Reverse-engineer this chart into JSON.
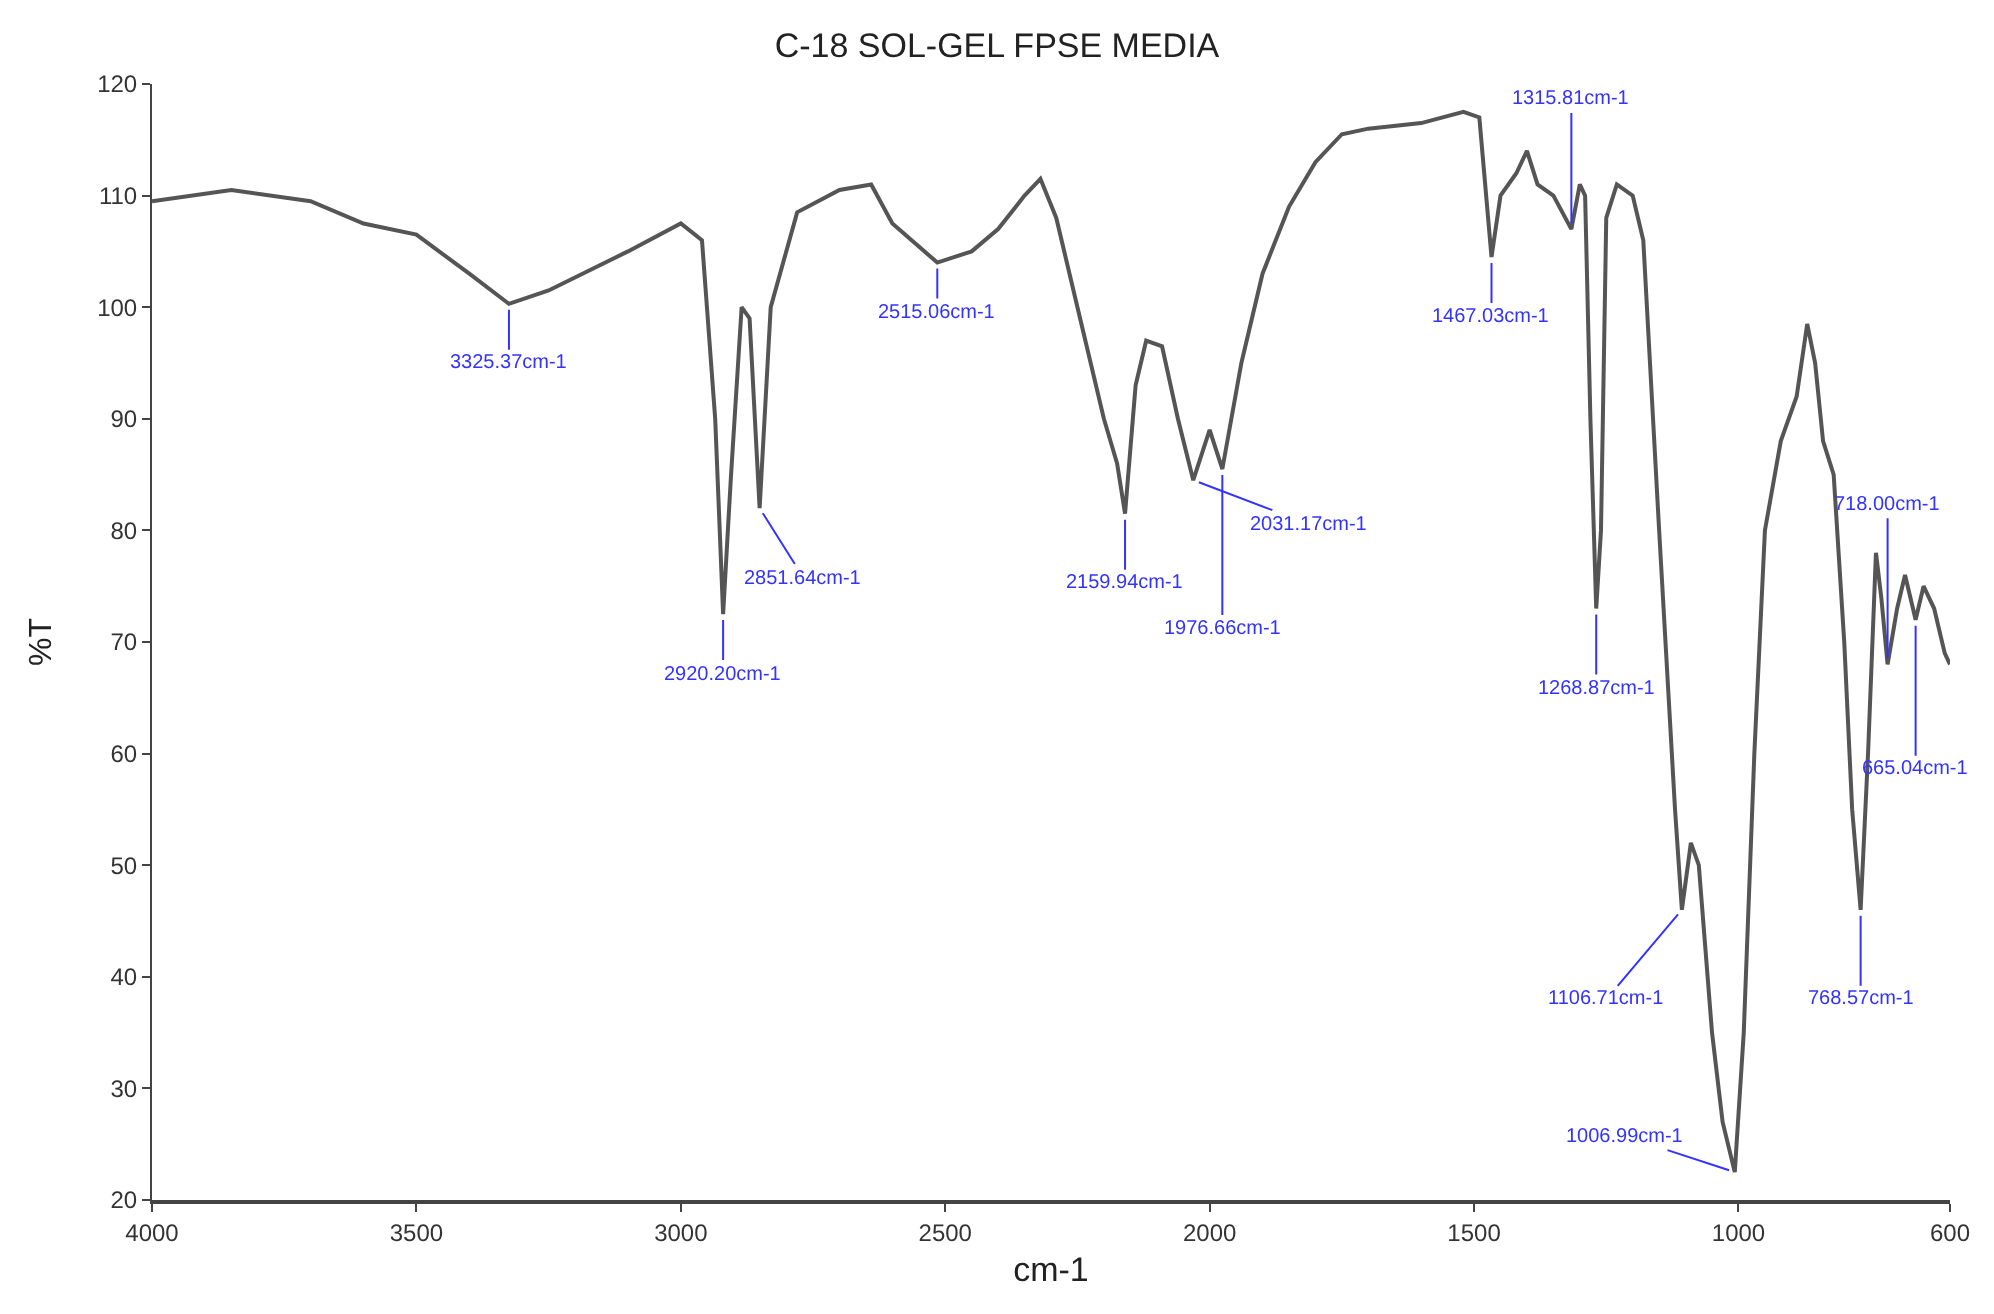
{
  "chart_data": {
    "type": "line",
    "title": "C-18 SOL-GEL FPSE MEDIA",
    "xlabel": "cm-1",
    "ylabel": "%T",
    "marker": "none",
    "line_style": "solid",
    "xlim": [
      4000,
      600
    ],
    "xticks": [
      4000,
      3500,
      3000,
      2500,
      2000,
      1500,
      1000,
      600
    ],
    "ylim": [
      20,
      120
    ],
    "yticks": [
      20,
      30,
      40,
      50,
      60,
      70,
      80,
      90,
      100,
      110,
      120
    ],
    "x": [
      4000,
      3850,
      3700,
      3600,
      3500,
      3400,
      3325,
      3250,
      3100,
      3000,
      2960,
      2935,
      2920,
      2905,
      2885,
      2870,
      2851,
      2830,
      2780,
      2700,
      2640,
      2600,
      2515,
      2450,
      2400,
      2350,
      2320,
      2290,
      2250,
      2200,
      2175,
      2160,
      2140,
      2120,
      2090,
      2060,
      2031,
      2000,
      1976,
      1940,
      1900,
      1850,
      1800,
      1750,
      1700,
      1600,
      1520,
      1490,
      1467,
      1450,
      1420,
      1400,
      1380,
      1350,
      1316,
      1300,
      1290,
      1280,
      1269,
      1260,
      1250,
      1230,
      1200,
      1180,
      1150,
      1120,
      1107,
      1090,
      1075,
      1050,
      1030,
      1007,
      990,
      970,
      950,
      920,
      890,
      870,
      855,
      840,
      820,
      800,
      785,
      769,
      755,
      740,
      730,
      718,
      700,
      685,
      665,
      650,
      630,
      610,
      600
    ],
    "series": [
      {
        "color": "#555555",
        "values": [
          109.5,
          110.5,
          109.5,
          107.5,
          106.5,
          103,
          100.3,
          101.5,
          105,
          107.5,
          106,
          90,
          72.5,
          85,
          100,
          99,
          82,
          100,
          108.5,
          110.5,
          111,
          107.5,
          104,
          105,
          107,
          110,
          111.5,
          108,
          100,
          90,
          86,
          81.5,
          93,
          97,
          96.5,
          90,
          84.5,
          89,
          85.5,
          95,
          103,
          109,
          113,
          115.5,
          116,
          116.5,
          117.5,
          117,
          104.5,
          110,
          112,
          114,
          111,
          110,
          107,
          111,
          110,
          90,
          73,
          80,
          108,
          111,
          110,
          106,
          80,
          55,
          46,
          52,
          50,
          35,
          27,
          22.5,
          35,
          60,
          80,
          88,
          92,
          98.5,
          95,
          88,
          85,
          70,
          55,
          46,
          60,
          78,
          74,
          68,
          73,
          76,
          72,
          75,
          73,
          69,
          68
        ]
      }
    ],
    "annotations": [
      {
        "text": "3325.37cm-1",
        "x": 3325,
        "y": 100.3
      },
      {
        "text": "2920.20cm-1",
        "x": 2920,
        "y": 72.5
      },
      {
        "text": "2851.64cm-1",
        "x": 2851,
        "y": 82
      },
      {
        "text": "2515.06cm-1",
        "x": 2515,
        "y": 104
      },
      {
        "text": "2159.94cm-1",
        "x": 2160,
        "y": 81.5
      },
      {
        "text": "2031.17cm-1",
        "x": 2031,
        "y": 84.5
      },
      {
        "text": "1976.66cm-1",
        "x": 1976,
        "y": 85.5
      },
      {
        "text": "1467.03cm-1",
        "x": 1467,
        "y": 104.5
      },
      {
        "text": "1315.81cm-1",
        "x": 1316,
        "y": 107
      },
      {
        "text": "1268.87cm-1",
        "x": 1269,
        "y": 73
      },
      {
        "text": "1106.71cm-1",
        "x": 1107,
        "y": 46
      },
      {
        "text": "1006.99cm-1",
        "x": 1007,
        "y": 22.5
      },
      {
        "text": "718.00cm-1",
        "x": 718,
        "y": 68
      },
      {
        "text": "768.57cm-1",
        "x": 769,
        "y": 46
      },
      {
        "text": "665.04cm-1",
        "x": 665,
        "y": 72
      }
    ]
  }
}
